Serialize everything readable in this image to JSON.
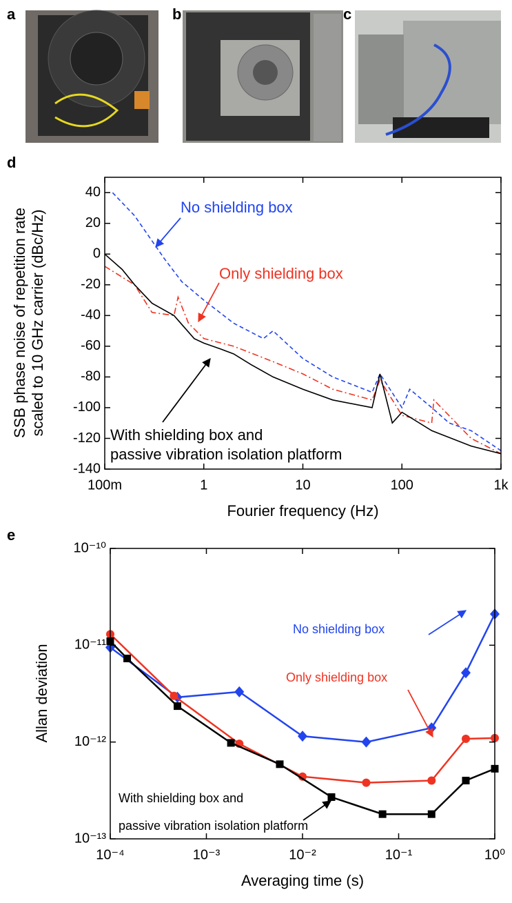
{
  "panel_labels": [
    "a",
    "b",
    "c",
    "d",
    "e"
  ],
  "chart_data": [
    {
      "type": "line",
      "ylabel": [
        "SSB phase noise of repetition rate",
        "scaled to 10 GHz carrier (dBc/Hz)"
      ],
      "xlabel": "Fourier frequency (Hz)",
      "xscale": "log",
      "xlim": [
        0.1,
        1000
      ],
      "xticks": [
        {
          "value": 0.1,
          "label": "100m"
        },
        1,
        10,
        100,
        {
          "value": 1000,
          "label": "1k"
        }
      ],
      "ylim": [
        -140,
        50
      ],
      "yticks": [
        -140,
        -120,
        -100,
        -80,
        -60,
        -40,
        -20,
        0,
        20,
        40
      ],
      "annotations": [
        "No shielding box",
        "Only shielding box",
        "With shielding box and",
        "passive vibration isolation platform"
      ],
      "series": [
        {
          "color": "#2244ee",
          "dash": "dashed",
          "x": [
            0.12,
            0.2,
            0.4,
            0.6,
            1,
            2,
            4,
            5,
            10,
            20,
            50,
            60,
            100,
            120,
            200,
            300,
            500,
            1000
          ],
          "values": [
            40,
            25,
            -3,
            -18,
            -30,
            -45,
            -55,
            -50,
            -68,
            -80,
            -90,
            -78,
            -100,
            -88,
            -100,
            -110,
            -115,
            -128
          ]
        },
        {
          "color": "#ee3322",
          "dash": "dashdot",
          "x": [
            0.1,
            0.2,
            0.3,
            0.5,
            0.55,
            0.7,
            1,
            2,
            5,
            10,
            20,
            50,
            60,
            100,
            200,
            210,
            500,
            1000
          ],
          "values": [
            -8,
            -20,
            -38,
            -40,
            -28,
            -45,
            -55,
            -60,
            -70,
            -78,
            -88,
            -95,
            -82,
            -105,
            -110,
            -95,
            -120,
            -130
          ]
        },
        {
          "color": "#000000",
          "dash": "solid",
          "x": [
            0.1,
            0.15,
            0.2,
            0.3,
            0.5,
            0.8,
            1,
            1.5,
            2,
            3,
            5,
            10,
            20,
            50,
            60,
            80,
            100,
            200,
            500,
            1000
          ],
          "values": [
            0,
            -10,
            -20,
            -32,
            -40,
            -55,
            -58,
            -62,
            -65,
            -72,
            -80,
            -88,
            -95,
            -100,
            -78,
            -110,
            -103,
            -115,
            -125,
            -130
          ]
        }
      ]
    },
    {
      "type": "line",
      "ylabel": [
        "Allan deviation"
      ],
      "xlabel": "Averaging time (s)",
      "xscale": "log",
      "yscale": "log",
      "xlim": [
        0.0001,
        1
      ],
      "xticks": [
        {
          "value": 0.0001,
          "label": "10⁻⁴"
        },
        {
          "value": 0.001,
          "label": "10⁻³"
        },
        {
          "value": 0.01,
          "label": "10⁻²"
        },
        {
          "value": 0.1,
          "label": "10⁻¹"
        },
        {
          "value": 1,
          "label": "10⁰"
        }
      ],
      "ylim": [
        1e-13,
        1e-10
      ],
      "yticks": [
        {
          "value": 1e-13,
          "label": "10⁻¹³"
        },
        {
          "value": 1e-12,
          "label": "10⁻¹²"
        },
        {
          "value": 1e-11,
          "label": "10⁻¹¹"
        },
        {
          "value": 1e-10,
          "label": "10⁻¹⁰"
        }
      ],
      "annotations": [
        "No shielding box",
        "Only shielding box",
        "With shielding box and",
        "passive vibration isolation platform"
      ],
      "series": [
        {
          "color": "#2244ee",
          "marker": "diamond",
          "x": [
            0.0001,
            0.0005,
            0.0022,
            0.01,
            0.046,
            0.22,
            0.5,
            1
          ],
          "values": [
            9.5e-12,
            2.9e-12,
            3.3e-12,
            1.15e-12,
            1e-12,
            1.4e-12,
            5.2e-12,
            2.1e-11
          ]
        },
        {
          "color": "#ee3322",
          "marker": "circle",
          "x": [
            0.0001,
            0.00046,
            0.0022,
            0.01,
            0.046,
            0.22,
            0.5,
            1
          ],
          "values": [
            1.3e-11,
            3e-12,
            9.6e-13,
            4.4e-13,
            3.8e-13,
            4e-13,
            1.08e-12,
            1.1e-12
          ]
        },
        {
          "color": "#000000",
          "marker": "square",
          "x": [
            0.0001,
            0.00015,
            0.0005,
            0.0018,
            0.0058,
            0.02,
            0.068,
            0.22,
            0.5,
            1
          ],
          "values": [
            1.1e-11,
            7.3e-12,
            2.35e-12,
            9.8e-13,
            5.9e-13,
            2.7e-13,
            1.8e-13,
            1.8e-13,
            4e-13,
            5.3e-13
          ]
        }
      ]
    }
  ]
}
